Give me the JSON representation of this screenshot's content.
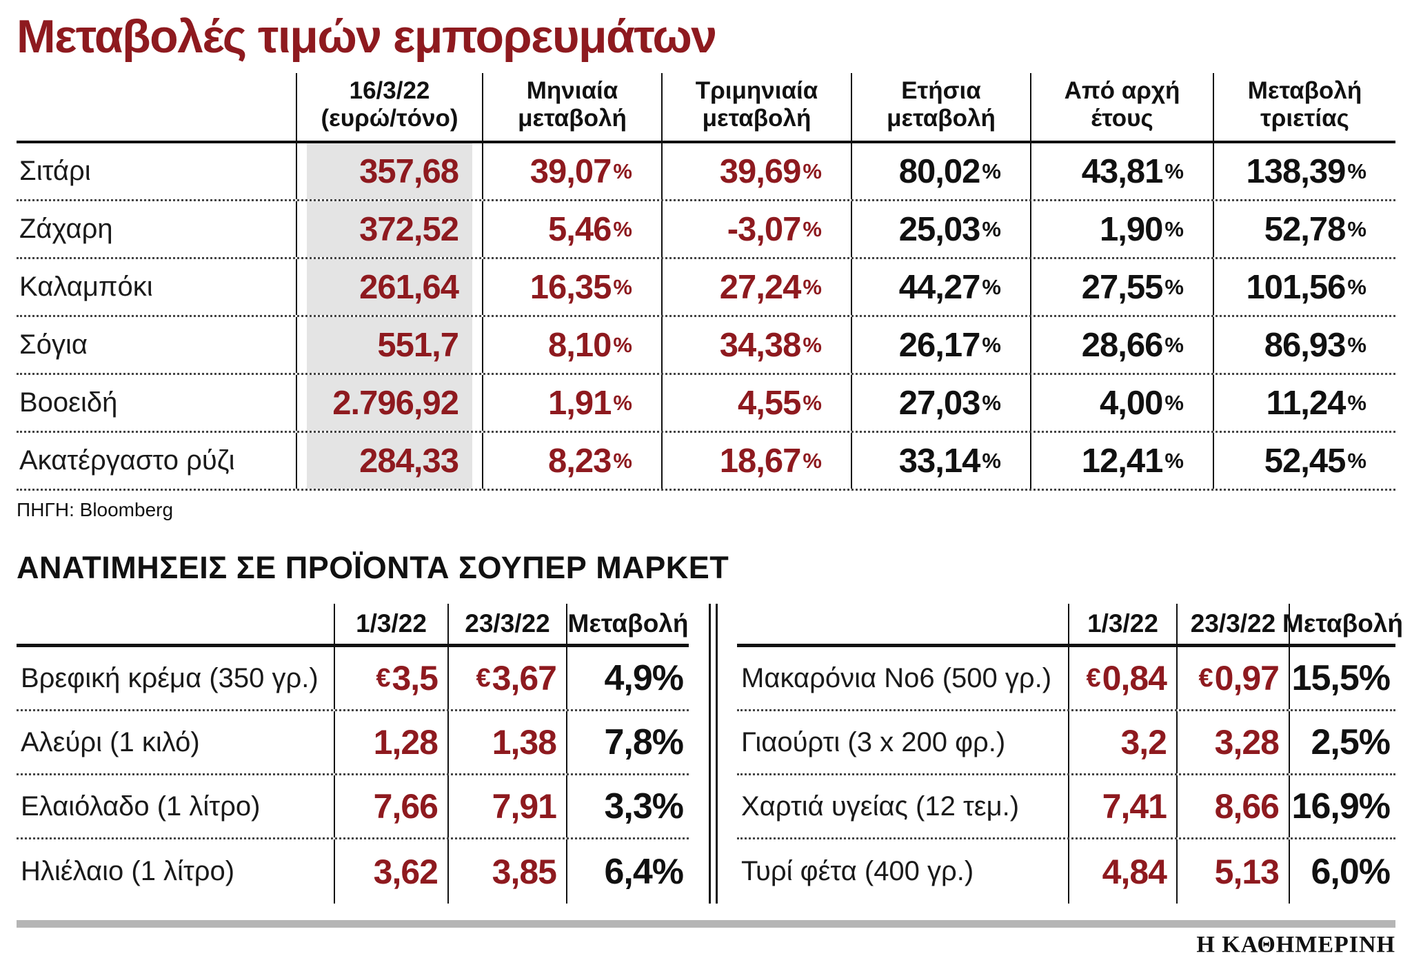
{
  "title": "Μεταβολές τιμών εμπορευμάτων",
  "source": "ΠΗΓΗ: Bloomberg",
  "brand": "Η ΚΑΘΗΜΕΡΙΝΗ",
  "symbols": {
    "percent": "%",
    "euro": "€"
  },
  "colors": {
    "accent_red": "#8e1a1f",
    "text_black": "#111111",
    "highlight_gray": "#e4e4e4",
    "footer_bar_gray": "#b5b5b5"
  },
  "commodities": {
    "headers": [
      "16/3/22\n(ευρώ/τόνο)",
      "Μηνιαία\nμεταβολή",
      "Τριμηνιαία\nμεταβολή",
      "Ετήσια\nμεταβολή",
      "Από αρχή\nέτους",
      "Μεταβολή\nτριετίας"
    ],
    "rows": [
      {
        "label": "Σιτάρι",
        "price": "357,68",
        "monthly": "39,07",
        "quarterly": "39,69",
        "yearly": "80,02",
        "ytd": "43,81",
        "three_year": "138,39"
      },
      {
        "label": "Ζάχαρη",
        "price": "372,52",
        "monthly": "5,46",
        "quarterly": "-3,07",
        "yearly": "25,03",
        "ytd": "1,90",
        "three_year": "52,78"
      },
      {
        "label": "Καλαμπόκι",
        "price": "261,64",
        "monthly": "16,35",
        "quarterly": "27,24",
        "yearly": "44,27",
        "ytd": "27,55",
        "three_year": "101,56"
      },
      {
        "label": "Σόγια",
        "price": "551,7",
        "monthly": "8,10",
        "quarterly": "34,38",
        "yearly": "26,17",
        "ytd": "28,66",
        "three_year": "86,93"
      },
      {
        "label": "Βοοειδή",
        "price": "2.796,92",
        "monthly": "1,91",
        "quarterly": "4,55",
        "yearly": "27,03",
        "ytd": "4,00",
        "three_year": "11,24"
      },
      {
        "label": "Ακατέργαστο ρύζι",
        "price": "284,33",
        "monthly": "8,23",
        "quarterly": "18,67",
        "yearly": "33,14",
        "ytd": "12,41",
        "three_year": "52,45"
      }
    ]
  },
  "supermarket": {
    "title": "ΑΝΑΤΙΜΗΣΕΙΣ ΣΕ ΠΡΟΪΟΝΤΑ ΣΟΥΠΕΡ ΜΑΡΚΕΤ",
    "headers": [
      "1/3/22",
      "23/3/22",
      "Μεταβολή"
    ],
    "left_rows": [
      {
        "label": "Βρεφική κρέμα (350 γρ.)",
        "cur": "€",
        "p1": "3,5",
        "p2": "3,67",
        "chg": "4,9%"
      },
      {
        "label": "Αλεύρι (1 κιλό)",
        "cur": "",
        "p1": "1,28",
        "p2": "1,38",
        "chg": "7,8%"
      },
      {
        "label": "Ελαιόλαδο (1 λίτρο)",
        "cur": "",
        "p1": "7,66",
        "p2": "7,91",
        "chg": "3,3%"
      },
      {
        "label": "Ηλιέλαιο (1 λίτρο)",
        "cur": "",
        "p1": "3,62",
        "p2": "3,85",
        "chg": "6,4%"
      }
    ],
    "right_rows": [
      {
        "label": "Μακαρόνια Νο6 (500 γρ.)",
        "cur": "€",
        "p1": "0,84",
        "p2": "0,97",
        "chg": "15,5%"
      },
      {
        "label": "Γιαούρτι (3 x 200 φρ.)",
        "cur": "",
        "p1": "3,2",
        "p2": "3,28",
        "chg": "2,5%"
      },
      {
        "label": "Χαρτιά υγείας (12 τεμ.)",
        "cur": "",
        "p1": "7,41",
        "p2": "8,66",
        "chg": "16,9%"
      },
      {
        "label": "Τυρί φέτα (400 γρ.)",
        "cur": "",
        "p1": "4,84",
        "p2": "5,13",
        "chg": "6,0%"
      }
    ]
  },
  "chart_data": [
    {
      "type": "table",
      "title": "Μεταβολές τιμών εμπορευμάτων",
      "columns": [
        "",
        "16/3/22 (ευρώ/τόνο)",
        "Μηνιαία μεταβολή %",
        "Τριμηνιαία μεταβολή %",
        "Ετήσια μεταβολή %",
        "Από αρχή έτους %",
        "Μεταβολή τριετίας %"
      ],
      "rows": [
        [
          "Σιτάρι",
          357.68,
          39.07,
          39.69,
          80.02,
          43.81,
          138.39
        ],
        [
          "Ζάχαρη",
          372.52,
          5.46,
          -3.07,
          25.03,
          1.9,
          52.78
        ],
        [
          "Καλαμπόκι",
          261.64,
          16.35,
          27.24,
          44.27,
          27.55,
          101.56
        ],
        [
          "Σόγια",
          551.7,
          8.1,
          34.38,
          26.17,
          28.66,
          86.93
        ],
        [
          "Βοοειδή",
          2796.92,
          1.91,
          4.55,
          27.03,
          4.0,
          11.24
        ],
        [
          "Ακατέργαστο ρύζι",
          284.33,
          8.23,
          18.67,
          33.14,
          12.41,
          52.45
        ]
      ],
      "source": "Bloomberg"
    },
    {
      "type": "table",
      "title": "ΑΝΑΤΙΜΗΣΕΙΣ ΣΕ ΠΡΟΪΟΝΤΑ ΣΟΥΠΕΡ ΜΑΡΚΕΤ",
      "columns": [
        "",
        "1/3/22 (€)",
        "23/3/22 (€)",
        "Μεταβολή %"
      ],
      "rows": [
        [
          "Βρεφική κρέμα (350 γρ.)",
          3.5,
          3.67,
          4.9
        ],
        [
          "Αλεύρι (1 κιλό)",
          1.28,
          1.38,
          7.8
        ],
        [
          "Ελαιόλαδο (1 λίτρο)",
          7.66,
          7.91,
          3.3
        ],
        [
          "Ηλιέλαιο (1 λίτρο)",
          3.62,
          3.85,
          6.4
        ],
        [
          "Μακαρόνια Νο6 (500 γρ.)",
          0.84,
          0.97,
          15.5
        ],
        [
          "Γιαούρτι (3 x 200 φρ.)",
          3.2,
          3.28,
          2.5
        ],
        [
          "Χαρτιά υγείας (12 τεμ.)",
          7.41,
          8.66,
          16.9
        ],
        [
          "Τυρί φέτα (400 γρ.)",
          4.84,
          5.13,
          6.0
        ]
      ]
    }
  ]
}
